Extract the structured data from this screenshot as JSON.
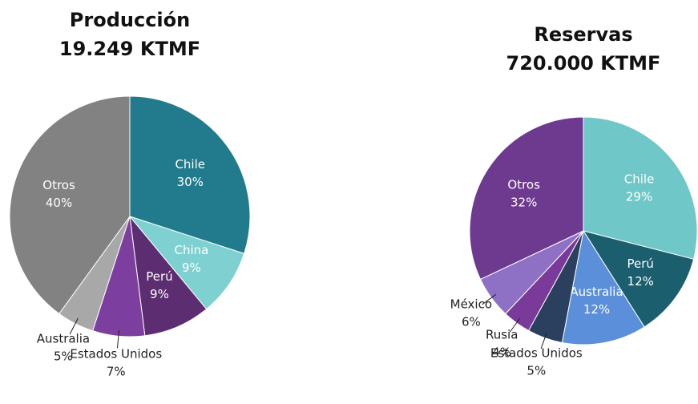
{
  "chart_data": [
    {
      "type": "pie",
      "title": "Producción",
      "subtitle": "19.249 KTMF",
      "categories": [
        "Chile",
        "China",
        "Perú",
        "Estados Unidos",
        "Australia",
        "Otros"
      ],
      "values": [
        30,
        9,
        9,
        7,
        5,
        40
      ],
      "value_labels": [
        "30%",
        "9%",
        "9%",
        "7%",
        "5%",
        "40%"
      ],
      "colors": [
        "#217b8d",
        "#7fd0d0",
        "#5c2d70",
        "#7c3f9f",
        "#a8a8a8",
        "#828282"
      ]
    },
    {
      "type": "pie",
      "title": "Reservas",
      "subtitle": "720.000 KTMF",
      "categories": [
        "Chile",
        "Perú",
        "Australia",
        "Estados Unidos",
        "Rusia",
        "México",
        "Otros"
      ],
      "values": [
        29,
        12,
        12,
        5,
        4,
        6,
        32
      ],
      "value_labels": [
        "29%",
        "12%",
        "12%",
        "5%",
        "4%",
        "6%",
        "32%"
      ],
      "colors": [
        "#70c7c7",
        "#1b5f6f",
        "#5b8fd9",
        "#2b3f5e",
        "#7a3a99",
        "#8e70c4",
        "#6e3a90"
      ]
    }
  ]
}
